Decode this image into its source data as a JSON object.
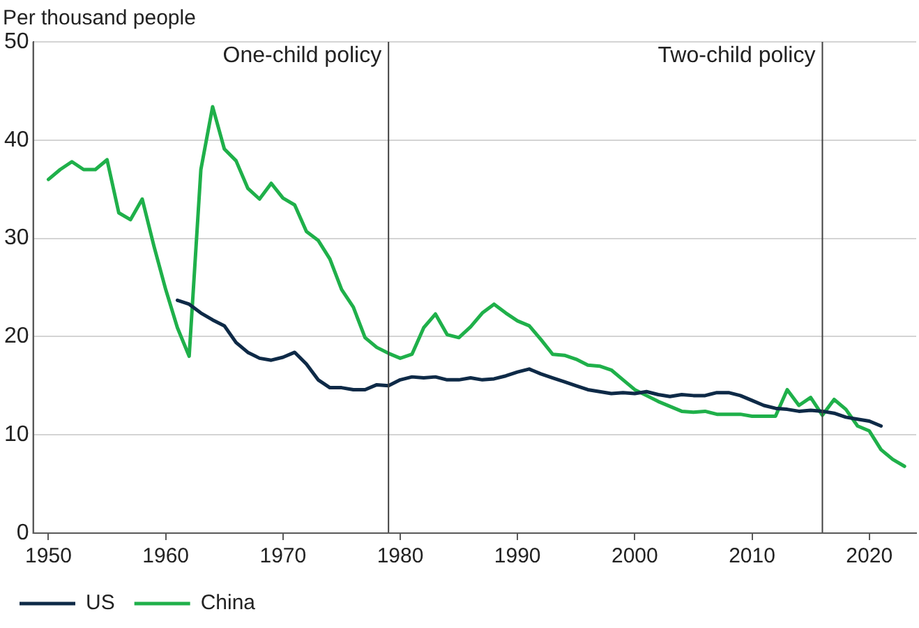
{
  "chart_data": {
    "type": "line",
    "ylabel": "Per thousand people",
    "xlim": [
      1948.7,
      2024
    ],
    "xticks": [
      1950,
      1960,
      1970,
      1980,
      1990,
      2000,
      2010,
      2020
    ],
    "ylim": [
      0,
      50
    ],
    "yticks": [
      0,
      10,
      20,
      30,
      40,
      50
    ],
    "grid": "y",
    "legend": "bottom left",
    "marker": "none",
    "line_style": "solid",
    "ref_lines": [
      {
        "axis": "x",
        "value": 1979,
        "label": "One-child policy",
        "color": "#404040"
      },
      {
        "axis": "x",
        "value": 2016,
        "label": "Two-child policy",
        "color": "#404040"
      }
    ],
    "series": [
      {
        "name": "US",
        "color": "#0e2a47",
        "x": [
          1961,
          1962,
          1963,
          1964,
          1965,
          1966,
          1967,
          1968,
          1969,
          1970,
          1971,
          1972,
          1973,
          1974,
          1975,
          1976,
          1977,
          1978,
          1979,
          1980,
          1981,
          1982,
          1983,
          1984,
          1985,
          1986,
          1987,
          1988,
          1989,
          1990,
          1991,
          1992,
          1993,
          1994,
          1995,
          1996,
          1997,
          1998,
          1999,
          2000,
          2001,
          2002,
          2003,
          2004,
          2005,
          2006,
          2007,
          2008,
          2009,
          2010,
          2011,
          2012,
          2013,
          2014,
          2015,
          2016,
          2017,
          2018,
          2019,
          2020,
          2021
        ],
        "values": [
          23.7,
          23.3,
          22.4,
          21.7,
          21.1,
          19.4,
          18.4,
          17.8,
          17.6,
          17.9,
          18.4,
          17.2,
          15.6,
          14.8,
          14.8,
          14.6,
          14.6,
          15.1,
          15.0,
          15.6,
          15.9,
          15.8,
          15.9,
          15.6,
          15.6,
          15.8,
          15.6,
          15.7,
          16.0,
          16.4,
          16.7,
          16.2,
          15.8,
          15.4,
          15.0,
          14.6,
          14.4,
          14.2,
          14.3,
          14.2,
          14.4,
          14.1,
          13.9,
          14.1,
          14.0,
          14.0,
          14.3,
          14.3,
          14.0,
          13.5,
          13.0,
          12.7,
          12.6,
          12.4,
          12.5,
          12.4,
          12.2,
          11.8,
          11.6,
          11.4,
          10.9
        ]
      },
      {
        "name": "China",
        "color": "#1fb04a",
        "x": [
          1950,
          1951,
          1952,
          1953,
          1954,
          1955,
          1956,
          1957,
          1958,
          1959,
          1960,
          1961,
          1962,
          1963,
          1964,
          1965,
          1966,
          1967,
          1968,
          1969,
          1970,
          1971,
          1972,
          1973,
          1974,
          1975,
          1976,
          1977,
          1978,
          1979,
          1980,
          1981,
          1982,
          1983,
          1984,
          1985,
          1986,
          1987,
          1988,
          1989,
          1990,
          1991,
          1992,
          1993,
          1994,
          1995,
          1996,
          1997,
          1998,
          1999,
          2000,
          2001,
          2002,
          2003,
          2004,
          2005,
          2006,
          2007,
          2008,
          2009,
          2010,
          2011,
          2012,
          2013,
          2014,
          2015,
          2016,
          2017,
          2018,
          2019,
          2020,
          2021,
          2022,
          2023
        ],
        "values": [
          36,
          37,
          37.8,
          37,
          37,
          38,
          32.6,
          31.9,
          34,
          29.2,
          24.8,
          20.9,
          18,
          37,
          43.4,
          39.1,
          37.9,
          35.1,
          34,
          35.6,
          34.1,
          33.4,
          30.7,
          29.8,
          27.9,
          24.8,
          23,
          19.9,
          18.9,
          18.3,
          17.8,
          18.2,
          20.9,
          22.3,
          20.2,
          19.9,
          21,
          22.4,
          23.3,
          22.4,
          21.6,
          21.1,
          19.7,
          18.2,
          18.1,
          17.7,
          17.1,
          17,
          16.6,
          15.6,
          14.6,
          14,
          13.4,
          12.9,
          12.4,
          12.3,
          12.4,
          12.1,
          12.1,
          12.1,
          11.9,
          11.9,
          11.9,
          14.6,
          13,
          13.8,
          12,
          13.6,
          12.6,
          10.9,
          10.4,
          8.5,
          7.5,
          6.8
        ]
      }
    ]
  }
}
